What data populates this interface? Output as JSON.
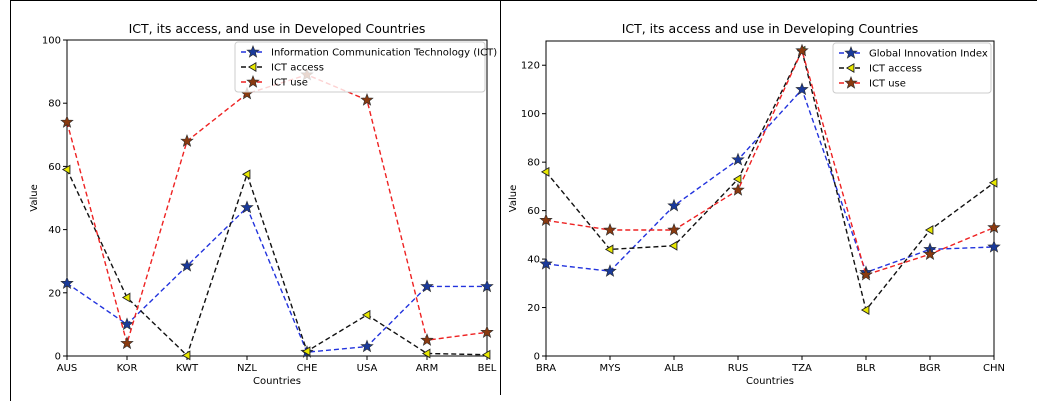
{
  "chart_data": [
    {
      "type": "line",
      "title": "ICT, its access, and use in Developed Countries",
      "xlabel": "Countries",
      "ylabel": "Value",
      "categories": [
        "AUS",
        "KOR",
        "KWT",
        "NZL",
        "CHE",
        "USA",
        "ARM",
        "BEL"
      ],
      "ylim": [
        0,
        100
      ],
      "yticks": [
        0,
        20,
        40,
        60,
        80,
        100
      ],
      "legend_position": "top-right",
      "grid": false,
      "series": [
        {
          "name": "Information Communication Technology (ICT)",
          "color": "#2233dd",
          "marker": "star",
          "marker_color": "#1a3a9a",
          "values": [
            23,
            10,
            28.5,
            47,
            1.2,
            3,
            22,
            22
          ]
        },
        {
          "name": "ICT access",
          "color": "#111111",
          "marker": "triangle-left",
          "marker_color": "#e8e800",
          "values": [
            59,
            18.5,
            0.2,
            57.5,
            1.5,
            13,
            0.8,
            0.4
          ]
        },
        {
          "name": "ICT use",
          "color": "#ee2222",
          "marker": "star",
          "marker_color": "#8a3a10",
          "values": [
            74,
            4,
            68,
            83,
            89,
            81,
            5,
            7.5
          ]
        }
      ]
    },
    {
      "type": "line",
      "title": "ICT, its access and use in Developing Countries",
      "xlabel": "Countries",
      "ylabel": "Value",
      "categories": [
        "BRA",
        "MYS",
        "ALB",
        "RUS",
        "TZA",
        "BLR",
        "BGR",
        "CHN"
      ],
      "ylim": [
        0,
        130
      ],
      "yticks": [
        0,
        20,
        40,
        60,
        80,
        100,
        120
      ],
      "legend_position": "top-right",
      "grid": false,
      "series": [
        {
          "name": "Global Innovation Index",
          "color": "#2233dd",
          "marker": "star",
          "marker_color": "#1a3a9a",
          "values": [
            38,
            35,
            62,
            81,
            110,
            34.5,
            44,
            45
          ]
        },
        {
          "name": "ICT access",
          "color": "#111111",
          "marker": "triangle-left",
          "marker_color": "#e8e800",
          "values": [
            76,
            44,
            45.5,
            73,
            126,
            19,
            52,
            71.5
          ]
        },
        {
          "name": "ICT use",
          "color": "#ee2222",
          "marker": "star",
          "marker_color": "#8a3a10",
          "values": [
            56,
            52,
            52,
            68.5,
            126,
            33.5,
            42,
            53
          ]
        }
      ]
    }
  ]
}
